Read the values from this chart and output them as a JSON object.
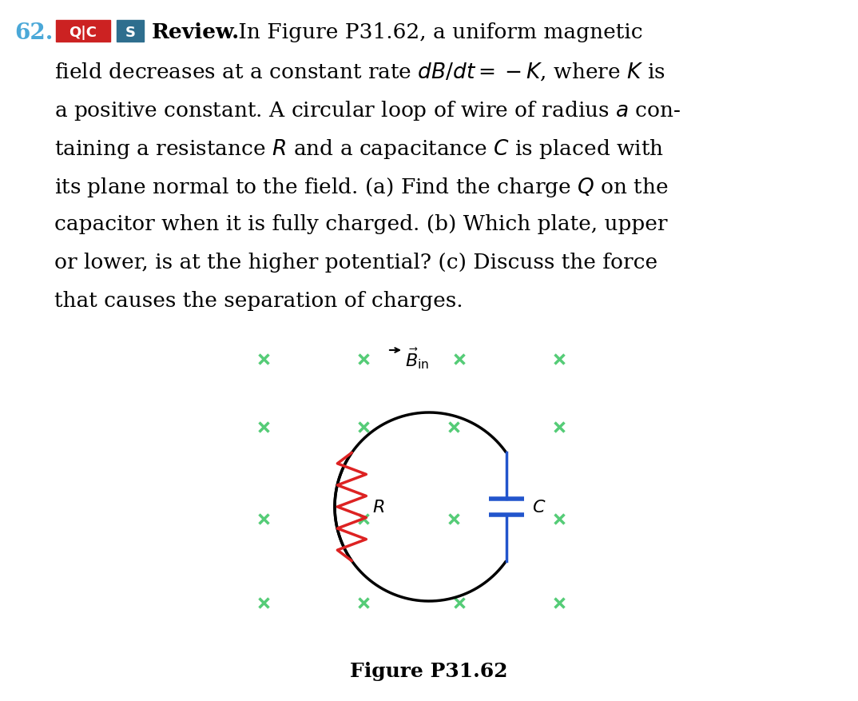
{
  "fig_width": 10.74,
  "fig_height": 8.78,
  "dpi": 100,
  "bg_color": "#ffffff",
  "number_text": "62.",
  "number_color": "#4aa8d8",
  "qc_box_color": "#cc2222",
  "qc_text": "Q|C",
  "s_box_color": "#2e6e8e",
  "s_text": "S",
  "review_text": "Review.",
  "line1_after_review": " In Figure P31.62, a uniform magnetic",
  "paragraph_lines": [
    "field decreases at a constant rate $dB/dt = -K$, where $K$ is",
    "a positive constant. A circular loop of wire of radius $a$ con-",
    "taining a resistance $R$ and a capacitance $C$ is placed with",
    "its plane normal to the field. (a) Find the charge $Q$ on the",
    "capacitor when it is fully charged. (b) Which plate, upper",
    "or lower, is at the higher potential? (c) Discuss the force",
    "that causes the separation of charges."
  ],
  "cross_color": "#55cc77",
  "resistor_color": "#dd2222",
  "capacitor_color": "#2255cc",
  "figure_label": "Figure P31.62",
  "text_fontsize": 19,
  "label_fontsize": 16,
  "fig_label_fontsize": 18
}
